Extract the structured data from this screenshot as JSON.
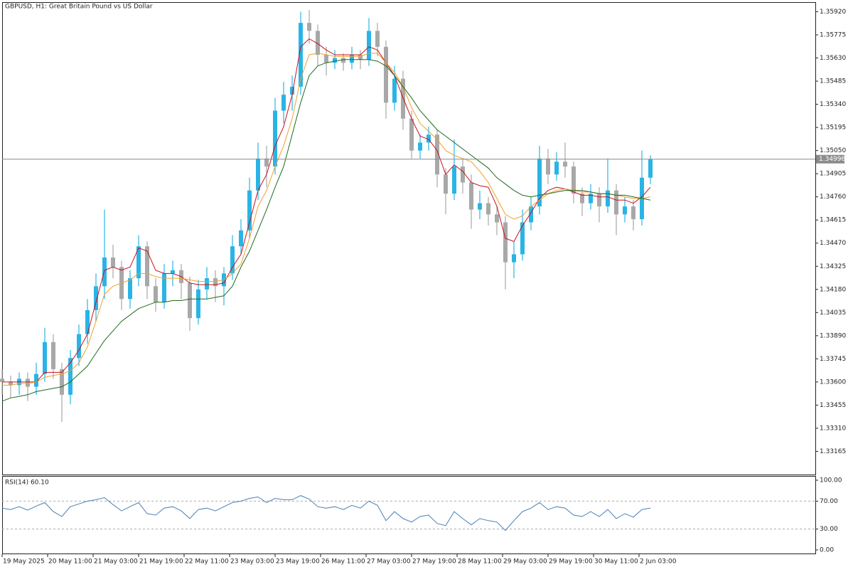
{
  "chart_data": {
    "type": "candlestick",
    "title": "GBPUSD, H1:  Great Britain Pound vs US Dollar",
    "up_color": "#2ab4e6",
    "down_color": "#a8a8a8",
    "xlim": [
      0,
      286
    ],
    "xticks": [
      {
        "value": 0,
        "label": "19 May 2025"
      },
      {
        "value": 16,
        "label": "20 May 11:00"
      },
      {
        "value": 32,
        "label": "21 May 03:00"
      },
      {
        "value": 48,
        "label": "21 May 19:00"
      },
      {
        "value": 64,
        "label": "22 May 11:00"
      },
      {
        "value": 80,
        "label": "23 May 03:00"
      },
      {
        "value": 96,
        "label": "23 May 19:00"
      },
      {
        "value": 112,
        "label": "26 May 11:00"
      },
      {
        "value": 128,
        "label": "27 May 03:00"
      },
      {
        "value": 144,
        "label": "27 May 19:00"
      },
      {
        "value": 160,
        "label": "28 May 11:00"
      },
      {
        "value": 176,
        "label": "29 May 03:00"
      },
      {
        "value": 192,
        "label": "29 May 19:00"
      },
      {
        "value": 208,
        "label": "30 May 11:00"
      },
      {
        "value": 224,
        "label": "2 Jun 03:00"
      }
    ],
    "ylim": [
      1.3302,
      1.3598
    ],
    "yticks": [
      {
        "value": 1.3592,
        "label": "1.35920"
      },
      {
        "value": 1.35775,
        "label": "1.35775"
      },
      {
        "value": 1.3563,
        "label": "1.35630"
      },
      {
        "value": 1.35485,
        "label": "1.35485"
      },
      {
        "value": 1.3534,
        "label": "1.35340"
      },
      {
        "value": 1.35195,
        "label": "1.35195"
      },
      {
        "value": 1.3505,
        "label": "1.35050"
      },
      {
        "value": 1.34905,
        "label": "1.34905"
      },
      {
        "value": 1.3476,
        "label": "1.34760"
      },
      {
        "value": 1.34615,
        "label": "1.34615"
      },
      {
        "value": 1.3447,
        "label": "1.34470"
      },
      {
        "value": 1.34325,
        "label": "1.34325"
      },
      {
        "value": 1.3418,
        "label": "1.34180"
      },
      {
        "value": 1.34035,
        "label": "1.34035"
      },
      {
        "value": 1.3389,
        "label": "1.33890"
      },
      {
        "value": 1.33745,
        "label": "1.33745"
      },
      {
        "value": 1.336,
        "label": "1.33600"
      },
      {
        "value": 1.33455,
        "label": "1.33455"
      },
      {
        "value": 1.3331,
        "label": "1.33310"
      },
      {
        "value": 1.33165,
        "label": "1.33165"
      }
    ],
    "current_price": {
      "value": 1.34996,
      "label": "1.34996"
    },
    "x": [
      0,
      3,
      6,
      9,
      12,
      15,
      18,
      21,
      24,
      27,
      30,
      33,
      36,
      39,
      42,
      45,
      48,
      51,
      54,
      57,
      60,
      63,
      66,
      69,
      72,
      75,
      78,
      81,
      84,
      87,
      90,
      93,
      96,
      99,
      102,
      105,
      108,
      111,
      114,
      117,
      120,
      123,
      126,
      129,
      132,
      135,
      138,
      141,
      144,
      147,
      150,
      153,
      156,
      159,
      162,
      165,
      168,
      171,
      174,
      177,
      180,
      183,
      186,
      189,
      192,
      195,
      198,
      201,
      204,
      207,
      210,
      213,
      216,
      219,
      222,
      225,
      228
    ],
    "candles": [
      [
        1.3362,
        1.3368,
        1.3352,
        1.336
      ],
      [
        1.336,
        1.3364,
        1.335,
        1.3358
      ],
      [
        1.3358,
        1.3366,
        1.3352,
        1.3362
      ],
      [
        1.3362,
        1.3366,
        1.3348,
        1.3357
      ],
      [
        1.3357,
        1.3372,
        1.3352,
        1.3365
      ],
      [
        1.3365,
        1.3394,
        1.336,
        1.3385
      ],
      [
        1.3385,
        1.339,
        1.3362,
        1.3368
      ],
      [
        1.3368,
        1.3372,
        1.3335,
        1.3352
      ],
      [
        1.3352,
        1.338,
        1.3346,
        1.3375
      ],
      [
        1.3375,
        1.3396,
        1.337,
        1.339
      ],
      [
        1.339,
        1.3412,
        1.3384,
        1.3405
      ],
      [
        1.3405,
        1.3428,
        1.3398,
        1.342
      ],
      [
        1.342,
        1.3468,
        1.3412,
        1.3438
      ],
      [
        1.3438,
        1.3446,
        1.3425,
        1.3432
      ],
      [
        1.3432,
        1.3436,
        1.3405,
        1.3412
      ],
      [
        1.3412,
        1.343,
        1.3406,
        1.3425
      ],
      [
        1.3425,
        1.3452,
        1.342,
        1.3445
      ],
      [
        1.3445,
        1.3448,
        1.3412,
        1.342
      ],
      [
        1.342,
        1.3425,
        1.3404,
        1.341
      ],
      [
        1.341,
        1.3434,
        1.3406,
        1.3428
      ],
      [
        1.3428,
        1.3436,
        1.342,
        1.343
      ],
      [
        1.343,
        1.3434,
        1.3412,
        1.3422
      ],
      [
        1.3422,
        1.3426,
        1.3392,
        1.34
      ],
      [
        1.34,
        1.3424,
        1.3396,
        1.3418
      ],
      [
        1.3418,
        1.3432,
        1.3412,
        1.3425
      ],
      [
        1.3425,
        1.343,
        1.341,
        1.342
      ],
      [
        1.342,
        1.3432,
        1.3408,
        1.3428
      ],
      [
        1.3428,
        1.3452,
        1.3424,
        1.3445
      ],
      [
        1.3445,
        1.3462,
        1.344,
        1.3455
      ],
      [
        1.3455,
        1.3488,
        1.345,
        1.348
      ],
      [
        1.348,
        1.351,
        1.3474,
        1.35
      ],
      [
        1.35,
        1.3508,
        1.3482,
        1.3495
      ],
      [
        1.3495,
        1.3538,
        1.349,
        1.353
      ],
      [
        1.353,
        1.3548,
        1.3522,
        1.354
      ],
      [
        1.354,
        1.3552,
        1.353,
        1.3545
      ],
      [
        1.3545,
        1.3592,
        1.354,
        1.3585
      ],
      [
        1.3585,
        1.3593,
        1.3572,
        1.358
      ],
      [
        1.358,
        1.3584,
        1.3558,
        1.3565
      ],
      [
        1.3565,
        1.357,
        1.3552,
        1.356
      ],
      [
        1.356,
        1.3568,
        1.3556,
        1.3563
      ],
      [
        1.3563,
        1.3566,
        1.3555,
        1.356
      ],
      [
        1.356,
        1.357,
        1.3556,
        1.3565
      ],
      [
        1.3565,
        1.3568,
        1.3556,
        1.3562
      ],
      [
        1.3562,
        1.3588,
        1.3558,
        1.358
      ],
      [
        1.358,
        1.3585,
        1.3564,
        1.357
      ],
      [
        1.357,
        1.3574,
        1.3525,
        1.3535
      ],
      [
        1.3535,
        1.3558,
        1.353,
        1.355
      ],
      [
        1.355,
        1.3555,
        1.3518,
        1.3525
      ],
      [
        1.3525,
        1.353,
        1.35,
        1.3505
      ],
      [
        1.3505,
        1.3515,
        1.35,
        1.351
      ],
      [
        1.351,
        1.352,
        1.3505,
        1.3515
      ],
      [
        1.3515,
        1.3518,
        1.3482,
        1.349
      ],
      [
        1.349,
        1.3494,
        1.3465,
        1.3478
      ],
      [
        1.3478,
        1.3512,
        1.3474,
        1.3495
      ],
      [
        1.3495,
        1.35,
        1.3478,
        1.3485
      ],
      [
        1.3485,
        1.349,
        1.3456,
        1.3468
      ],
      [
        1.3468,
        1.348,
        1.3462,
        1.3472
      ],
      [
        1.3472,
        1.3476,
        1.3458,
        1.3465
      ],
      [
        1.3465,
        1.347,
        1.3452,
        1.346
      ],
      [
        1.346,
        1.3464,
        1.3418,
        1.3435
      ],
      [
        1.3435,
        1.3448,
        1.3425,
        1.344
      ],
      [
        1.344,
        1.3468,
        1.3436,
        1.346
      ],
      [
        1.346,
        1.3476,
        1.3455,
        1.347
      ],
      [
        1.347,
        1.3508,
        1.3465,
        1.35
      ],
      [
        1.35,
        1.3506,
        1.3484,
        1.349
      ],
      [
        1.349,
        1.3504,
        1.3486,
        1.3498
      ],
      [
        1.3498,
        1.351,
        1.3488,
        1.3495
      ],
      [
        1.3495,
        1.3498,
        1.3472,
        1.3478
      ],
      [
        1.3478,
        1.3482,
        1.3464,
        1.3472
      ],
      [
        1.3472,
        1.3484,
        1.3468,
        1.3478
      ],
      [
        1.3478,
        1.3482,
        1.346,
        1.347
      ],
      [
        1.347,
        1.35,
        1.3466,
        1.348
      ],
      [
        1.348,
        1.3484,
        1.3452,
        1.3465
      ],
      [
        1.3465,
        1.3476,
        1.346,
        1.347
      ],
      [
        1.347,
        1.3474,
        1.3455,
        1.3462
      ],
      [
        1.3462,
        1.3505,
        1.3458,
        1.3488
      ],
      [
        1.3488,
        1.3502,
        1.3484,
        1.34996
      ]
    ],
    "ma_lines": [
      {
        "color": "#c8101e",
        "values": [
          1.336,
          1.336,
          1.336,
          1.336,
          1.336,
          1.3366,
          1.3366,
          1.3366,
          1.3372,
          1.338,
          1.339,
          1.341,
          1.343,
          1.3432,
          1.343,
          1.3432,
          1.3444,
          1.3442,
          1.343,
          1.3428,
          1.3428,
          1.3426,
          1.3422,
          1.3421,
          1.3421,
          1.3421,
          1.3422,
          1.3432,
          1.344,
          1.346,
          1.348,
          1.349,
          1.3508,
          1.352,
          1.354,
          1.357,
          1.3575,
          1.3572,
          1.3568,
          1.3565,
          1.3565,
          1.3565,
          1.3565,
          1.357,
          1.3568,
          1.356,
          1.3552,
          1.3538,
          1.3525,
          1.3514,
          1.3512,
          1.3505,
          1.349,
          1.3496,
          1.3492,
          1.3485,
          1.3483,
          1.3482,
          1.347,
          1.345,
          1.3448,
          1.3458,
          1.3466,
          1.3475,
          1.348,
          1.3482,
          1.3481,
          1.3479,
          1.3477,
          1.3477,
          1.3476,
          1.3476,
          1.3474,
          1.3474,
          1.3472,
          1.3476,
          1.3482
        ]
      },
      {
        "color": "#f0a028",
        "values": [
          1.3358,
          1.3358,
          1.3359,
          1.3359,
          1.336,
          1.3363,
          1.3364,
          1.3365,
          1.3367,
          1.3372,
          1.3382,
          1.3398,
          1.3415,
          1.342,
          1.3422,
          1.3424,
          1.3428,
          1.3428,
          1.3426,
          1.3425,
          1.3425,
          1.3425,
          1.3424,
          1.3423,
          1.3423,
          1.3423,
          1.3424,
          1.3428,
          1.3434,
          1.345,
          1.347,
          1.348,
          1.3495,
          1.3508,
          1.3525,
          1.355,
          1.3565,
          1.3566,
          1.3565,
          1.3564,
          1.3564,
          1.3564,
          1.3564,
          1.3566,
          1.3566,
          1.356,
          1.3554,
          1.3545,
          1.3532,
          1.3522,
          1.3517,
          1.3512,
          1.3505,
          1.3502,
          1.35,
          1.3498,
          1.3492,
          1.3485,
          1.3475,
          1.3465,
          1.3462,
          1.3464,
          1.347,
          1.3474,
          1.3478,
          1.348,
          1.3481,
          1.348,
          1.3479,
          1.3479,
          1.3478,
          1.3478,
          1.3477,
          1.3476,
          1.3475,
          1.3475,
          1.3476
        ]
      },
      {
        "color": "#1e6a1e",
        "values": [
          1.3348,
          1.335,
          1.3351,
          1.3352,
          1.3354,
          1.3355,
          1.3356,
          1.3357,
          1.336,
          1.3365,
          1.337,
          1.3378,
          1.3386,
          1.3392,
          1.3398,
          1.3402,
          1.3406,
          1.3408,
          1.341,
          1.341,
          1.3411,
          1.3411,
          1.3412,
          1.3412,
          1.3412,
          1.3413,
          1.3414,
          1.342,
          1.3432,
          1.3442,
          1.3455,
          1.3468,
          1.3482,
          1.3495,
          1.3515,
          1.3535,
          1.3552,
          1.3558,
          1.356,
          1.3561,
          1.3562,
          1.3562,
          1.3562,
          1.3562,
          1.3561,
          1.3558,
          1.3552,
          1.3545,
          1.3538,
          1.353,
          1.3524,
          1.3518,
          1.3514,
          1.351,
          1.3506,
          1.3502,
          1.3498,
          1.3494,
          1.3488,
          1.3484,
          1.348,
          1.3477,
          1.3476,
          1.3477,
          1.3478,
          1.3479,
          1.348,
          1.348,
          1.348,
          1.3479,
          1.3478,
          1.3478,
          1.3477,
          1.3477,
          1.3476,
          1.3475,
          1.3474
        ]
      }
    ],
    "rsi": {
      "label": "RSI(14) 60.10",
      "color": "#4a80b8",
      "ylim": [
        0,
        100
      ],
      "yticks": [
        {
          "value": 100,
          "label": "100.00"
        },
        {
          "value": 70,
          "label": "70.00"
        },
        {
          "value": 30,
          "label": "30.00"
        },
        {
          "value": 0,
          "label": "0.00"
        }
      ],
      "levels": [
        70,
        30
      ],
      "values": [
        60,
        58,
        62,
        57,
        63,
        68,
        55,
        48,
        62,
        66,
        70,
        72,
        75,
        65,
        56,
        62,
        68,
        52,
        50,
        60,
        62,
        56,
        45,
        58,
        60,
        56,
        62,
        68,
        70,
        74,
        76,
        68,
        74,
        72,
        72,
        78,
        73,
        62,
        60,
        62,
        58,
        64,
        60,
        70,
        64,
        42,
        55,
        45,
        40,
        48,
        50,
        38,
        35,
        55,
        45,
        36,
        45,
        42,
        40,
        28,
        42,
        55,
        60,
        68,
        58,
        62,
        60,
        50,
        48,
        55,
        48,
        58,
        45,
        52,
        47,
        58,
        60.1
      ]
    }
  }
}
